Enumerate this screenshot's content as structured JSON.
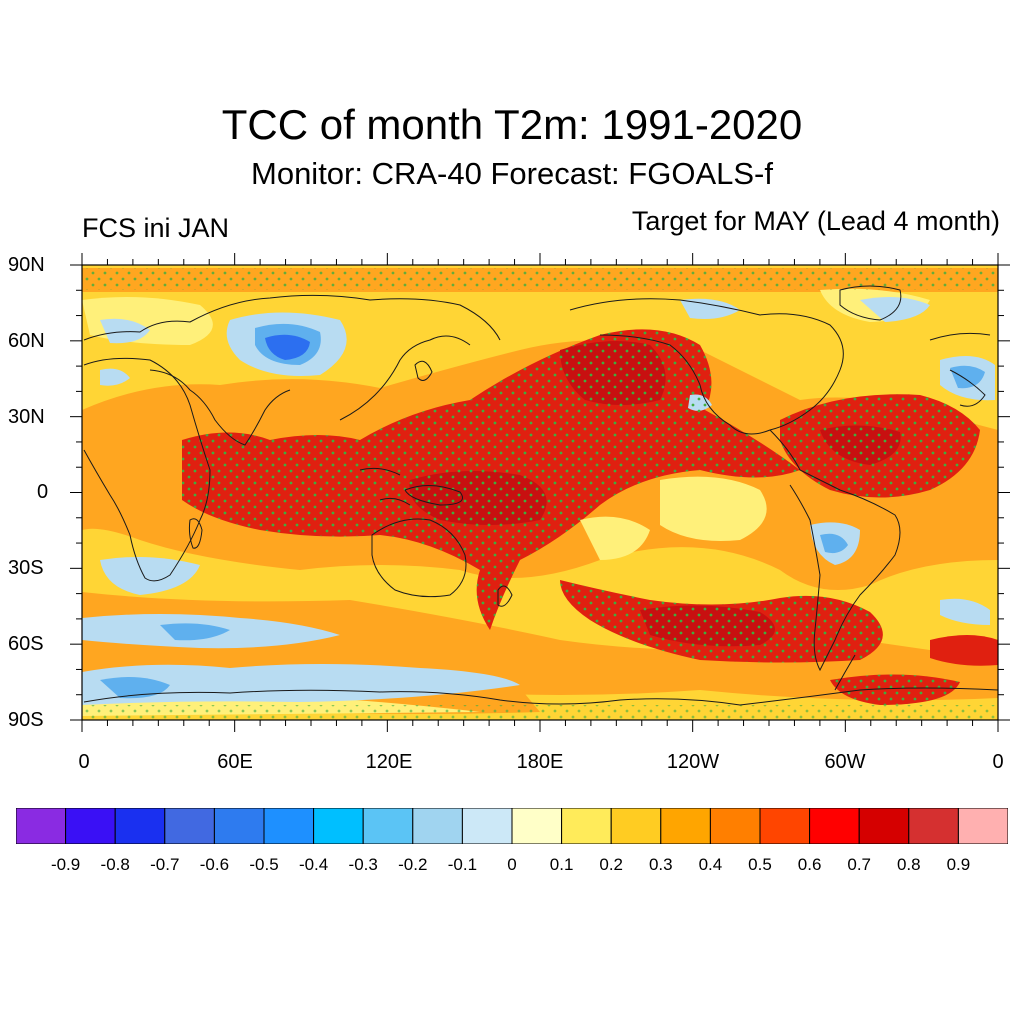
{
  "title": "TCC of month T2m: 1991-2020",
  "subtitle": "Monitor: CRA-40   Forecast: FGOALS-f",
  "left_label": "FCS ini JAN",
  "right_label": "Target for MAY (Lead 4 month)",
  "lat_labels": [
    "90N",
    "60N",
    "30N",
    "0",
    "30S",
    "60S",
    "90S"
  ],
  "lon_labels": [
    "0",
    "60E",
    "120E",
    "180E",
    "120W",
    "60W",
    "0"
  ],
  "colorbar": {
    "colors": [
      "#8a2be2",
      "#3a10f5",
      "#1a30f0",
      "#4169e1",
      "#2e7bef",
      "#1e90ff",
      "#00bfff",
      "#5bc4f5",
      "#a0d4f0",
      "#cce8f7",
      "#ffffc8",
      "#ffeb5a",
      "#ffcc22",
      "#ffa500",
      "#ff7f00",
      "#ff4500",
      "#ff0000",
      "#d50000",
      "#d53030",
      "#ffb0b0"
    ],
    "labels": [
      "-0.9",
      "-0.8",
      "-0.7",
      "-0.6",
      "-0.5",
      "-0.4",
      "-0.3",
      "-0.2",
      "-0.1",
      "0",
      "0.1",
      "0.2",
      "0.3",
      "0.4",
      "0.5",
      "0.6",
      "0.7",
      "0.8",
      "0.9"
    ]
  },
  "map_colors": {
    "background": "#ffd535",
    "light_yellow": "#fff07a",
    "orange": "#ffa620",
    "dark_orange": "#ff6a10",
    "red": "#e02010",
    "deep_red": "#c81010",
    "light_blue": "#b8dcf2",
    "mid_blue": "#5fb0ee",
    "deep_blue": "#2c6ff0",
    "stipple": "#3fae3f",
    "coast": "#1a1a1a"
  }
}
